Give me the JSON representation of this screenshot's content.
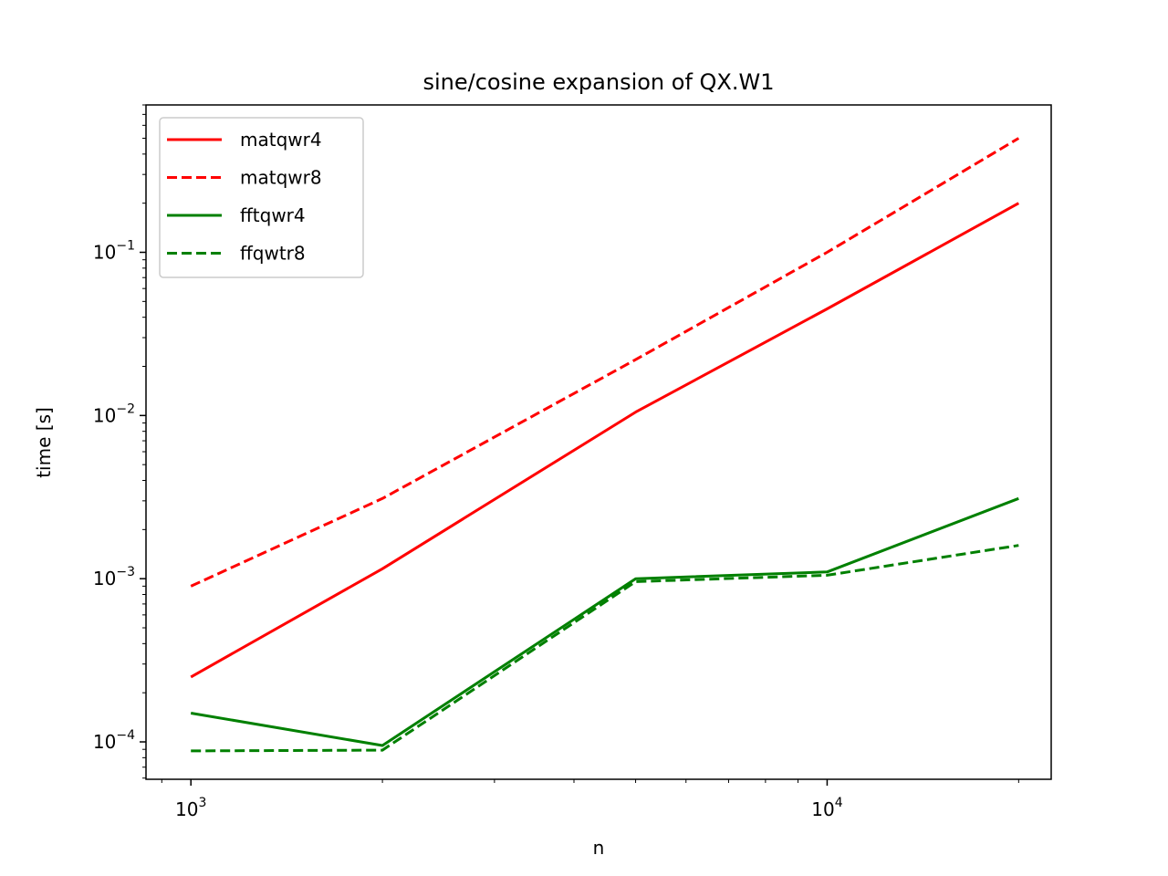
{
  "chart_data": {
    "type": "line",
    "title": "sine/cosine expansion of QX.W1",
    "xlabel": "n",
    "ylabel": "time [s]",
    "xscale": "log",
    "yscale": "log",
    "xlim": [
      850,
      22500
    ],
    "ylim": [
      5.9e-05,
      0.8
    ],
    "x_ticks": [
      {
        "value": 1000,
        "base": "10",
        "exp": "3"
      },
      {
        "value": 10000,
        "base": "10",
        "exp": "4"
      }
    ],
    "y_ticks": [
      {
        "value": 0.0001,
        "base": "10",
        "exp": "−4"
      },
      {
        "value": 0.001,
        "base": "10",
        "exp": "−3"
      },
      {
        "value": 0.01,
        "base": "10",
        "exp": "−2"
      },
      {
        "value": 0.1,
        "base": "10",
        "exp": "−1"
      }
    ],
    "grid": false,
    "legend_position": "upper-left",
    "series": [
      {
        "name": "matqwr4",
        "color": "#ff0000",
        "dash": "solid",
        "x": [
          1000,
          2000,
          5000,
          10000,
          20000
        ],
        "y": [
          0.00025,
          0.00115,
          0.0105,
          0.045,
          0.2
        ]
      },
      {
        "name": "matqwr8",
        "color": "#ff0000",
        "dash": "dashed",
        "x": [
          1000,
          2000,
          5000,
          10000,
          20000
        ],
        "y": [
          0.0009,
          0.0031,
          0.022,
          0.1,
          0.5
        ]
      },
      {
        "name": "fftqwr4",
        "color": "#008000",
        "dash": "solid",
        "x": [
          1000,
          2000,
          5000,
          10000,
          20000
        ],
        "y": [
          0.00015,
          9.5e-05,
          0.001,
          0.0011,
          0.0031
        ]
      },
      {
        "name": "ffqwtr8",
        "color": "#008000",
        "dash": "dashed",
        "x": [
          1000,
          2000,
          5000,
          10000,
          20000
        ],
        "y": [
          8.8e-05,
          8.9e-05,
          0.00096,
          0.00105,
          0.0016
        ]
      }
    ]
  }
}
